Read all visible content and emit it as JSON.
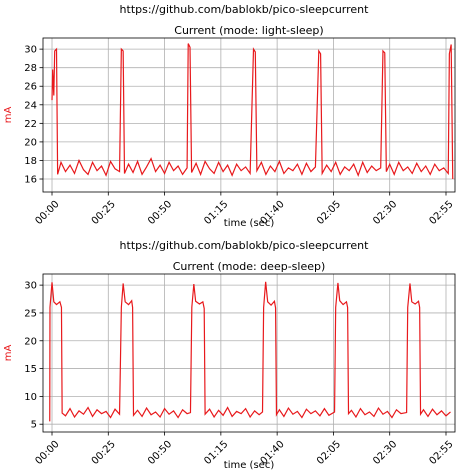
{
  "chart_data": [
    {
      "type": "line",
      "title": "https://github.com/bablokb/pico-sleepcurrent",
      "subtitle": "Current (mode: light-sleep)",
      "xlabel": "time (sec)",
      "ylabel": "mA",
      "color": "#e8191c",
      "grid": true,
      "xlim": [
        -4,
        179
      ],
      "ylim": [
        14.6,
        31.2
      ],
      "xticks": [
        {
          "value": 0,
          "label": "00:00"
        },
        {
          "value": 25,
          "label": "00:25"
        },
        {
          "value": 50,
          "label": "00:50"
        },
        {
          "value": 75,
          "label": "01:15"
        },
        {
          "value": 100,
          "label": "01:40"
        },
        {
          "value": 125,
          "label": "02:05"
        },
        {
          "value": 150,
          "label": "02:30"
        },
        {
          "value": 175,
          "label": "02:55"
        }
      ],
      "yticks": [
        16,
        18,
        20,
        22,
        24,
        26,
        28,
        30
      ],
      "x": [
        0,
        0.3,
        0.8,
        1.2,
        2,
        2.5,
        4,
        6,
        8,
        10,
        12,
        14,
        16,
        18,
        20,
        22,
        24,
        26,
        28,
        30,
        30.8,
        31.6,
        32.2,
        34,
        36,
        38,
        40,
        42,
        44,
        46,
        48,
        50,
        52,
        54,
        56,
        58,
        60,
        60.5,
        61.3,
        62,
        64,
        66,
        68,
        70,
        72,
        74,
        76,
        78,
        80,
        82,
        84,
        86,
        88,
        89.5,
        90.3,
        91,
        93,
        95,
        97,
        99,
        101,
        103,
        105,
        107,
        109,
        111,
        113,
        115,
        117,
        118.5,
        119.3,
        120,
        122,
        124,
        126,
        128,
        130,
        132,
        134,
        136,
        138,
        140,
        142,
        144,
        146,
        147,
        147.8,
        148.5,
        150,
        152,
        154,
        156,
        158,
        160,
        162,
        164,
        166,
        168,
        170,
        172,
        174,
        176,
        176.5,
        177.3,
        178
      ],
      "values": [
        24.5,
        27.8,
        25,
        29.8,
        30,
        16.5,
        17.8,
        16.8,
        17.5,
        16.6,
        18,
        17,
        16.5,
        17.8,
        16.9,
        17.4,
        16.4,
        17.9,
        17.1,
        16.8,
        30,
        29.8,
        16.6,
        17.6,
        16.7,
        17.9,
        16.5,
        17.3,
        18.2,
        16.8,
        17.5,
        16.6,
        17.8,
        16.9,
        17.4,
        16.5,
        17.2,
        30.6,
        30.2,
        16.7,
        17.7,
        16.5,
        17.9,
        17.1,
        16.6,
        17.8,
        16.8,
        17.5,
        16.4,
        17.6,
        16.9,
        17.3,
        16.6,
        30,
        29.7,
        16.9,
        17.8,
        16.5,
        17.4,
        16.8,
        17.9,
        16.6,
        17.2,
        16.9,
        17.6,
        16.5,
        17.7,
        16.8,
        17.3,
        29.8,
        29.5,
        16.6,
        17.5,
        16.8,
        17.8,
        16.5,
        17.3,
        16.9,
        17.6,
        16.4,
        17.8,
        16.7,
        17.4,
        16.9,
        17.2,
        29.8,
        29.6,
        16.8,
        17.6,
        16.5,
        17.8,
        16.9,
        17.3,
        16.6,
        17.7,
        16.8,
        17.4,
        16.5,
        17.6,
        16.9,
        17.2,
        16.6,
        29.5,
        30.5,
        16
      ]
    },
    {
      "type": "line",
      "title": "https://github.com/bablokb/pico-sleepcurrent",
      "subtitle": "Current (mode: deep-sleep)",
      "xlabel": "time (sec)",
      "ylabel": "mA",
      "color": "#e8191c",
      "grid": true,
      "xlim": [
        -4,
        179
      ],
      "ylim": [
        3.6,
        32
      ],
      "xticks": [
        {
          "value": 0,
          "label": "00:00"
        },
        {
          "value": 25,
          "label": "00:25"
        },
        {
          "value": 50,
          "label": "00:50"
        },
        {
          "value": 75,
          "label": "01:15"
        },
        {
          "value": 100,
          "label": "01:40"
        },
        {
          "value": 125,
          "label": "02:05"
        },
        {
          "value": 150,
          "label": "02:30"
        },
        {
          "value": 175,
          "label": "02:55"
        }
      ],
      "yticks": [
        5,
        10,
        15,
        20,
        25,
        30
      ],
      "x": [
        -1,
        -0.9,
        0,
        0.8,
        2,
        3.5,
        4.2,
        4.5,
        6,
        8,
        10,
        12,
        14,
        16,
        18,
        20,
        22,
        24,
        26,
        28,
        30,
        30.8,
        31.6,
        32.5,
        34,
        35.4,
        35.8,
        36.2,
        38,
        40,
        42,
        44,
        46,
        48,
        50,
        52,
        54,
        56,
        58,
        60,
        61.5,
        62.1,
        63,
        63.8,
        65.5,
        67,
        67.6,
        68,
        70,
        72,
        74,
        76,
        78,
        80,
        82,
        84,
        86,
        88,
        90,
        92,
        93.5,
        94,
        94.9,
        95.8,
        97.3,
        98.8,
        99.3,
        99.7,
        101,
        103,
        105,
        107,
        109,
        111,
        113,
        115,
        117,
        119,
        121,
        123,
        125.5,
        126,
        127,
        127.8,
        129.3,
        130.8,
        131.3,
        131.7,
        133,
        135,
        137,
        139,
        141,
        143,
        145,
        147,
        149,
        151,
        153,
        155,
        157.5,
        158,
        159,
        159.8,
        161.3,
        162.8,
        163.3,
        163.7,
        165,
        167,
        169,
        171,
        173,
        175,
        177
      ],
      "values": [
        5.5,
        26,
        30.5,
        27,
        26.5,
        27,
        26,
        7,
        6.5,
        7.8,
        6.3,
        7.4,
        6.8,
        8,
        6.4,
        7.6,
        6.9,
        7.3,
        6.2,
        7.7,
        6.8,
        26,
        30.3,
        27,
        26.5,
        27.2,
        26,
        6.6,
        7.5,
        6.4,
        7.9,
        6.7,
        7.2,
        6.3,
        7.8,
        6.8,
        7.4,
        6.2,
        7.6,
        6.9,
        7.1,
        26,
        30.2,
        27.1,
        26.6,
        27,
        25.8,
        6.8,
        7.7,
        6.3,
        7.5,
        6.6,
        8,
        6.4,
        7.3,
        6.9,
        7.8,
        6.3,
        7.4,
        6.7,
        7.2,
        26,
        30.6,
        27,
        26.4,
        27.1,
        25.9,
        6.7,
        7.6,
        6.4,
        7.9,
        6.8,
        7.3,
        6.2,
        7.7,
        6.9,
        7.4,
        6.5,
        7.8,
        6.6,
        7.2,
        26,
        30.4,
        27.2,
        26.5,
        27,
        26,
        6.9,
        7.5,
        6.3,
        7.8,
        6.7,
        7.2,
        6.4,
        7.9,
        6.8,
        7.3,
        6.2,
        7.6,
        6.9,
        7.1,
        26,
        30.3,
        27,
        26.6,
        27.1,
        26,
        6.8,
        7.6,
        6.4,
        7.7,
        6.7,
        7.4,
        6.5,
        7.2
      ]
    }
  ]
}
